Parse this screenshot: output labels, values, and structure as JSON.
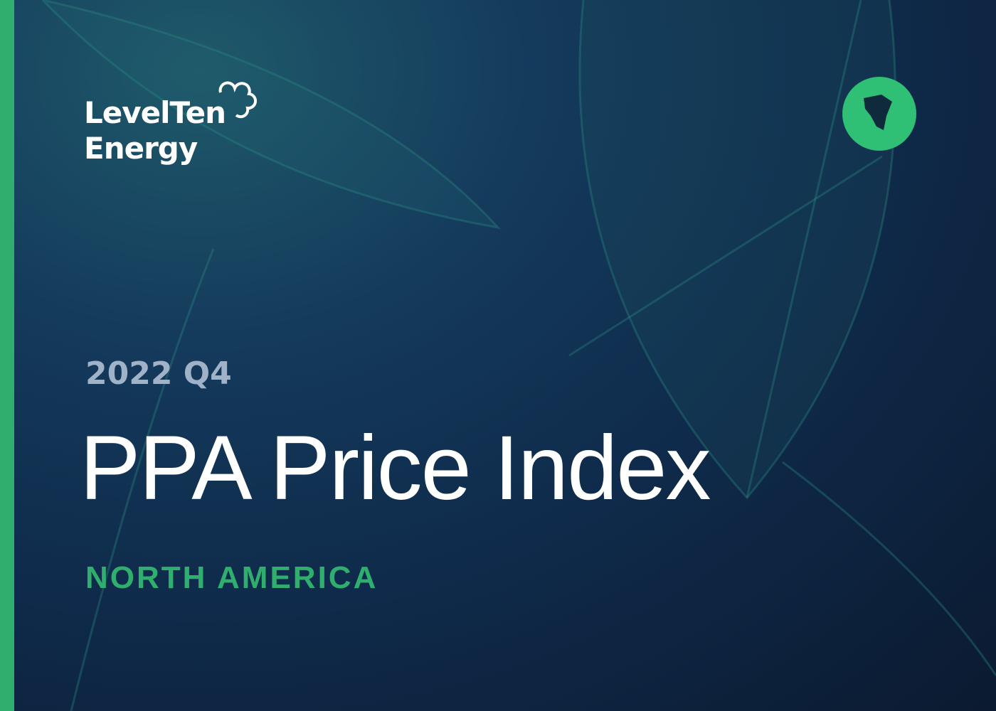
{
  "logo": {
    "line1": "LevelTen",
    "line2": "Energy"
  },
  "edition": "2022 Q4",
  "title": "PPA Price Index",
  "region": "NORTH AMERICA"
}
